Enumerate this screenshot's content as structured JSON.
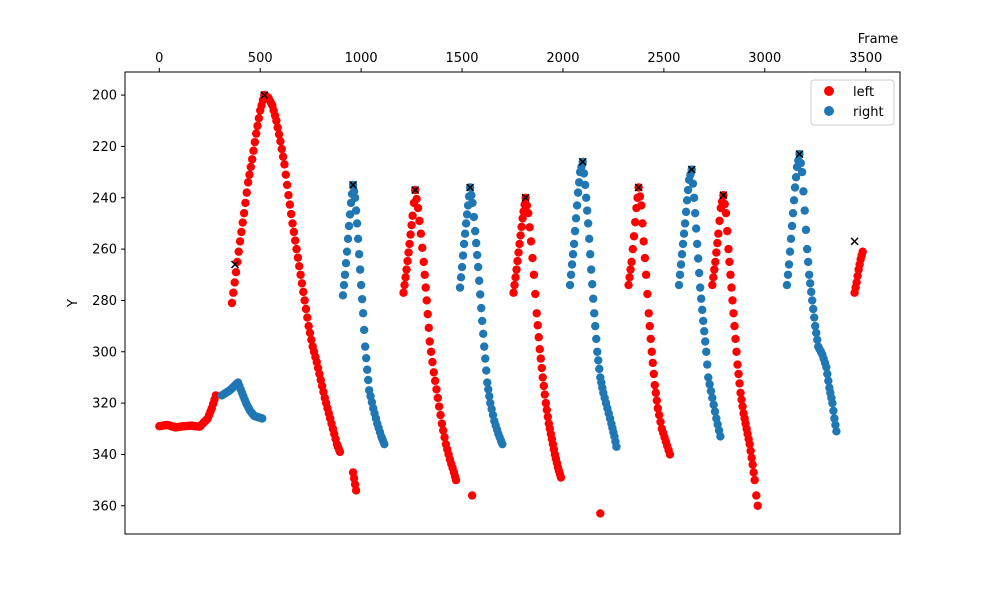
{
  "chart_data": {
    "type": "scatter",
    "title": "",
    "xlabel": "Frame",
    "ylabel": "Y",
    "xaxis_position": "top",
    "xlim": [
      -170,
      3670
    ],
    "ylim": [
      371,
      191
    ],
    "y_inverted": true,
    "grid": false,
    "legend_position": "top-right",
    "x_ticks": [
      0,
      500,
      1000,
      1500,
      2000,
      2500,
      3000,
      3500
    ],
    "y_ticks": [
      200,
      220,
      240,
      260,
      280,
      300,
      320,
      340,
      360
    ],
    "series": [
      {
        "name": "left",
        "color": "#ff0000",
        "marker": "circle",
        "segments": [
          [
            [
              0,
              329
            ],
            [
              40,
              328.5
            ],
            [
              80,
              329.5
            ],
            [
              120,
              329
            ],
            [
              160,
              328.8
            ],
            [
              200,
              329.2
            ],
            [
              240,
              326
            ],
            [
              260,
              322
            ],
            [
              280,
              317
            ]
          ],
          [
            [
              360,
              281
            ],
            [
              380,
              269
            ],
            [
              400,
              257
            ],
            [
              420,
              246
            ],
            [
              440,
              234
            ],
            [
              460,
              225
            ],
            [
              480,
              215
            ],
            [
              500,
              206
            ],
            [
              520,
              200
            ],
            [
              540,
              201
            ],
            [
              560,
              204
            ],
            [
              580,
              210
            ],
            [
              600,
              218
            ],
            [
              620,
              227
            ],
            [
              640,
              239
            ],
            [
              660,
              250
            ],
            [
              680,
              260
            ],
            [
              700,
              270
            ],
            [
              720,
              280
            ],
            [
              740,
              290
            ],
            [
              760,
              298
            ],
            [
              780,
              304
            ],
            [
              800,
              311
            ],
            [
              820,
              318
            ],
            [
              840,
              324
            ],
            [
              860,
              330
            ],
            [
              880,
              336
            ],
            [
              895,
              339
            ]
          ],
          [
            [
              960,
              347
            ],
            [
              975,
              354
            ]
          ],
          [
            [
              1210,
              277
            ],
            [
              1225,
              268
            ],
            [
              1240,
              258
            ],
            [
              1255,
              247
            ],
            [
              1268,
              237
            ],
            [
              1282,
              244
            ],
            [
              1296,
              254
            ],
            [
              1310,
              265
            ],
            [
              1325,
              280
            ],
            [
              1340,
              296
            ],
            [
              1360,
              308
            ],
            [
              1380,
              318
            ],
            [
              1400,
              328
            ],
            [
              1420,
              336
            ],
            [
              1440,
              342
            ],
            [
              1460,
              347
            ],
            [
              1470,
              350
            ]
          ],
          [
            [
              1550,
              356
            ]
          ],
          [
            [
              1755,
              277
            ],
            [
              1770,
              268
            ],
            [
              1785,
              258
            ],
            [
              1800,
              248
            ],
            [
              1815,
              240
            ],
            [
              1828,
              246
            ],
            [
              1842,
              257
            ],
            [
              1856,
              270
            ],
            [
              1870,
              285
            ],
            [
              1885,
              299
            ],
            [
              1900,
              310
            ],
            [
              1915,
              320
            ],
            [
              1930,
              328
            ],
            [
              1945,
              334
            ],
            [
              1960,
              340
            ],
            [
              1975,
              345
            ],
            [
              1990,
              349
            ]
          ],
          [
            [
              2185,
              363
            ]
          ],
          [
            [
              2325,
              274
            ],
            [
              2340,
              265
            ],
            [
              2352,
              255
            ],
            [
              2364,
              244
            ],
            [
              2375,
              236
            ],
            [
              2388,
              243
            ],
            [
              2400,
              257
            ],
            [
              2412,
              270
            ],
            [
              2425,
              285
            ],
            [
              2440,
              300
            ],
            [
              2455,
              313
            ],
            [
              2470,
              322
            ],
            [
              2490,
              330
            ],
            [
              2510,
              335
            ],
            [
              2530,
              340
            ]
          ],
          [
            [
              2740,
              274
            ],
            [
              2755,
              265
            ],
            [
              2770,
              254
            ],
            [
              2782,
              244
            ],
            [
              2795,
              239
            ],
            [
              2808,
              246
            ],
            [
              2820,
              260
            ],
            [
              2835,
              275
            ],
            [
              2850,
              290
            ],
            [
              2865,
              305
            ],
            [
              2880,
              316
            ],
            [
              2895,
              324
            ],
            [
              2910,
              330
            ],
            [
              2925,
              336
            ],
            [
              2940,
              344
            ],
            [
              2950,
              350
            ],
            [
              2958,
              356
            ],
            [
              2965,
              360
            ]
          ],
          [
            [
              3445,
              277
            ],
            [
              3455,
              273
            ],
            [
              3465,
              268
            ],
            [
              3475,
              264
            ],
            [
              3485,
              261
            ]
          ]
        ]
      },
      {
        "name": "right",
        "color": "#1f77b4",
        "marker": "circle",
        "segments": [
          [
            [
              310,
              317
            ],
            [
              330,
              316
            ],
            [
              350,
              315
            ],
            [
              370,
              313.5
            ],
            [
              390,
              312
            ],
            [
              410,
              316
            ],
            [
              430,
              320
            ],
            [
              450,
              323
            ],
            [
              470,
              325
            ],
            [
              490,
              325.5
            ],
            [
              510,
              326
            ]
          ],
          [
            [
              910,
              278
            ],
            [
              920,
              270
            ],
            [
              930,
              261
            ],
            [
              940,
              251
            ],
            [
              950,
              242
            ],
            [
              960,
              235
            ],
            [
              970,
              240
            ],
            [
              980,
              250
            ],
            [
              990,
              262
            ],
            [
              1000,
              274
            ],
            [
              1010,
              285
            ],
            [
              1020,
              298
            ],
            [
              1030,
              307
            ],
            [
              1040,
              315
            ],
            [
              1060,
              322
            ],
            [
              1080,
              328
            ],
            [
              1100,
              333
            ],
            [
              1115,
              336
            ]
          ],
          [
            [
              1490,
              275
            ],
            [
              1500,
              267
            ],
            [
              1510,
              258
            ],
            [
              1520,
              250
            ],
            [
              1530,
              243
            ],
            [
              1540,
              236
            ],
            [
              1552,
              242
            ],
            [
              1565,
              253
            ],
            [
              1580,
              267
            ],
            [
              1595,
              283
            ],
            [
              1610,
              298
            ],
            [
              1625,
              312
            ],
            [
              1640,
              320
            ],
            [
              1660,
              327
            ],
            [
              1680,
              332
            ],
            [
              1700,
              336
            ]
          ],
          [
            [
              2035,
              274
            ],
            [
              2045,
              266
            ],
            [
              2055,
              258
            ],
            [
              2065,
              248
            ],
            [
              2075,
              238
            ],
            [
              2085,
              230
            ],
            [
              2098,
              226
            ],
            [
              2110,
              235
            ],
            [
              2125,
              250
            ],
            [
              2140,
              268
            ],
            [
              2155,
              285
            ],
            [
              2170,
              300
            ],
            [
              2185,
              310
            ],
            [
              2200,
              316
            ],
            [
              2220,
              322
            ],
            [
              2240,
              328
            ],
            [
              2255,
              333
            ],
            [
              2265,
              337
            ]
          ],
          [
            [
              2575,
              274
            ],
            [
              2585,
              266
            ],
            [
              2595,
              258
            ],
            [
              2605,
              250
            ],
            [
              2615,
              241
            ],
            [
              2625,
              233
            ],
            [
              2638,
              229
            ],
            [
              2650,
              240
            ],
            [
              2665,
              258
            ],
            [
              2680,
              275
            ],
            [
              2695,
              288
            ],
            [
              2710,
              300
            ],
            [
              2720,
              310
            ],
            [
              2740,
              318
            ],
            [
              2760,
              326
            ],
            [
              2780,
              333
            ]
          ],
          [
            [
              3110,
              274
            ],
            [
              3120,
              266
            ],
            [
              3130,
              256
            ],
            [
              3140,
              246
            ],
            [
              3150,
              236
            ],
            [
              3160,
              228
            ],
            [
              3172,
              223
            ],
            [
              3185,
              230
            ],
            [
              3198,
              245
            ],
            [
              3210,
              260
            ],
            [
              3220,
              270
            ],
            [
              3235,
              280
            ],
            [
              3250,
              290
            ],
            [
              3265,
              298
            ],
            [
              3285,
              301
            ],
            [
              3305,
              306
            ],
            [
              3320,
              314
            ],
            [
              3335,
              320
            ],
            [
              3345,
              326
            ],
            [
              3355,
              331
            ]
          ]
        ]
      }
    ],
    "peak_markers": {
      "marker": "x",
      "color": "#000000",
      "points": [
        [
          375,
          266
        ],
        [
          520,
          200
        ],
        [
          960,
          235
        ],
        [
          1268,
          237
        ],
        [
          1540,
          236
        ],
        [
          1815,
          240
        ],
        [
          2098,
          226
        ],
        [
          2375,
          236
        ],
        [
          2638,
          229
        ],
        [
          2795,
          239
        ],
        [
          3172,
          223
        ],
        [
          3445,
          257
        ]
      ]
    }
  }
}
